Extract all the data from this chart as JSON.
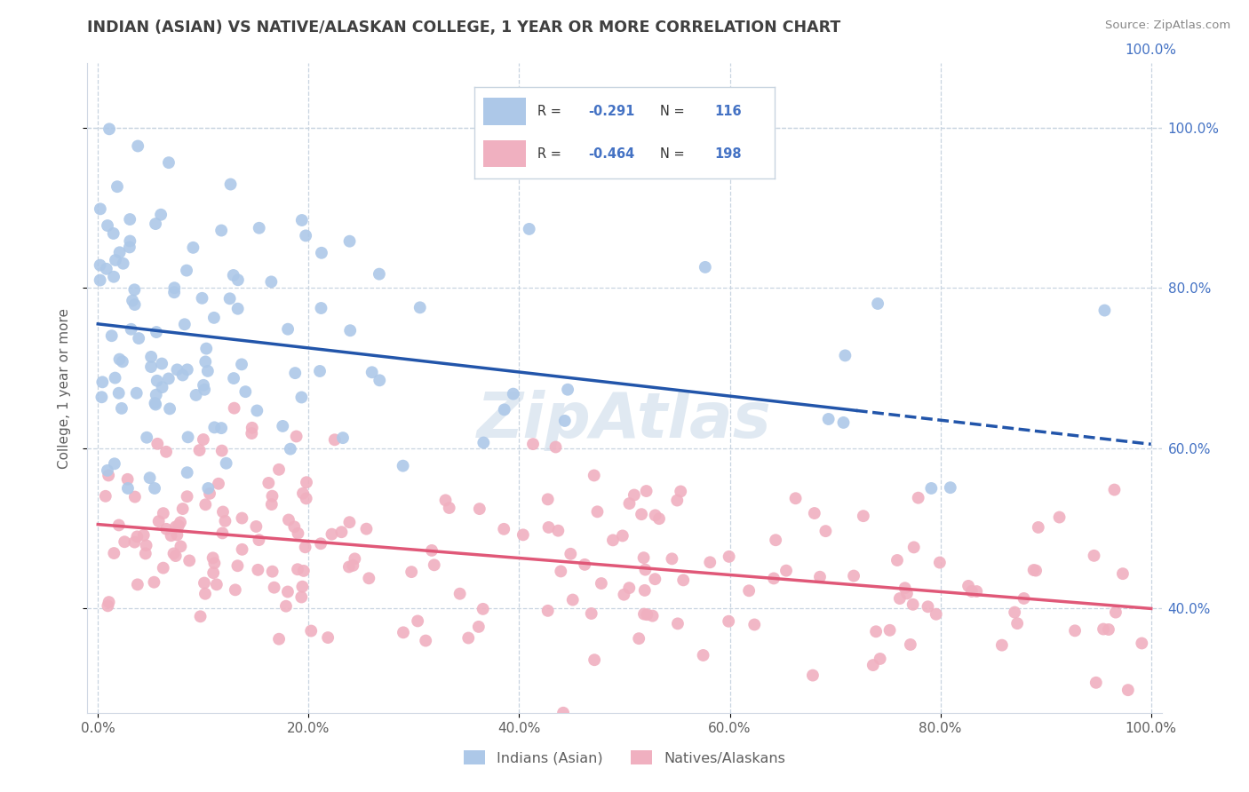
{
  "title": "INDIAN (ASIAN) VS NATIVE/ALASKAN COLLEGE, 1 YEAR OR MORE CORRELATION CHART",
  "source": "Source: ZipAtlas.com",
  "ylabel": "College, 1 year or more",
  "watermark": "ZipAtlas",
  "background_color": "#ffffff",
  "grid_color": "#c8d4e0",
  "blue_line_color": "#2255aa",
  "pink_line_color": "#e05878",
  "blue_scatter_color": "#adc8e8",
  "pink_scatter_color": "#f0b0c0",
  "legend_text_color": "#4472c4",
  "title_color": "#404040",
  "right_axis_color": "#4472c4",
  "n_blue": 116,
  "n_pink": 198,
  "R_blue": -0.291,
  "R_pink": -0.464,
  "blue_trend_start_y": 75.5,
  "blue_trend_end_y": 60.5,
  "blue_trend_solid_end_x": 72,
  "pink_trend_start_y": 50.5,
  "pink_trend_end_y": 40.0,
  "yticks": [
    40,
    60,
    80,
    100
  ],
  "xticks": [
    0,
    20,
    40,
    60,
    80,
    100
  ]
}
